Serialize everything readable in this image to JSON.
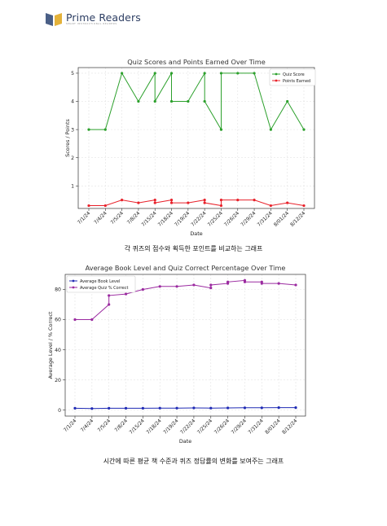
{
  "header": {
    "brand": "Prime Readers",
    "tagline": "SMART INSTRUCTIONAL READERS"
  },
  "charts": [
    {
      "caption": "각 퀴즈의 점수와 획득한 포인트를 비교하는 그래프",
      "chart_data": {
        "type": "line",
        "title": "Quiz Scores and Points Earned Over Time",
        "xlabel": "Date",
        "ylabel": "Scores / Points",
        "x_ticks": [
          "7/1/24",
          "7/4/24",
          "7/5/24",
          "7/8/24",
          "7/15/24",
          "7/18/24",
          "7/19/24",
          "7/22/24",
          "7/25/24",
          "7/26/24",
          "7/29/24",
          "7/31/24",
          "8/01/24",
          "8/12/24"
        ],
        "ylim": [
          0.2,
          5.2
        ],
        "y_ticks": [
          1,
          2,
          3,
          4,
          5
        ],
        "grid": true,
        "legend": "top-right",
        "series": [
          {
            "name": "Quiz Score",
            "color": "#2ca02c",
            "points": [
              [
                0,
                3
              ],
              [
                1,
                3
              ],
              [
                2,
                5
              ],
              [
                3,
                4
              ],
              [
                4,
                5
              ],
              [
                4,
                4
              ],
              [
                5,
                5
              ],
              [
                5,
                4
              ],
              [
                6,
                4
              ],
              [
                7,
                5
              ],
              [
                7,
                4
              ],
              [
                8,
                3
              ],
              [
                8,
                5
              ],
              [
                9,
                5
              ],
              [
                10,
                5
              ],
              [
                11,
                3
              ],
              [
                12,
                4
              ],
              [
                13,
                3
              ]
            ]
          },
          {
            "name": "Points Earned",
            "color": "#e8212a",
            "points": [
              [
                0,
                0.3
              ],
              [
                1,
                0.3
              ],
              [
                2,
                0.5
              ],
              [
                3,
                0.4
              ],
              [
                4,
                0.5
              ],
              [
                4,
                0.4
              ],
              [
                5,
                0.5
              ],
              [
                5,
                0.4
              ],
              [
                6,
                0.4
              ],
              [
                7,
                0.5
              ],
              [
                7,
                0.4
              ],
              [
                8,
                0.3
              ],
              [
                8,
                0.5
              ],
              [
                9,
                0.5
              ],
              [
                10,
                0.5
              ],
              [
                11,
                0.3
              ],
              [
                12,
                0.4
              ],
              [
                13,
                0.3
              ]
            ]
          }
        ]
      }
    },
    {
      "caption": "시간에 따른 평균 책 수준과 퀴즈 정답률의 변화를 보여주는 그래프",
      "chart_data": {
        "type": "line",
        "title": "Average Book Level and Quiz Correct Percentage Over Time",
        "xlabel": "Date",
        "ylabel": "Average Level / % Correct",
        "x_ticks": [
          "7/1/24",
          "7/4/24",
          "7/5/24",
          "7/8/24",
          "7/15/24",
          "7/18/24",
          "7/19/24",
          "7/22/24",
          "7/25/24",
          "7/26/24",
          "7/29/24",
          "7/31/24",
          "8/01/24",
          "8/12/24"
        ],
        "ylim": [
          -4,
          90
        ],
        "y_ticks": [
          0,
          20,
          40,
          60,
          80
        ],
        "grid": true,
        "legend": "top-left",
        "series": [
          {
            "name": "Average Book Level",
            "color": "#1f2ab4",
            "points": [
              [
                0,
                1.2
              ],
              [
                1,
                1.0
              ],
              [
                2,
                1.2
              ],
              [
                3,
                1.2
              ],
              [
                4,
                1.2
              ],
              [
                5,
                1.3
              ],
              [
                6,
                1.3
              ],
              [
                7,
                1.4
              ],
              [
                8,
                1.3
              ],
              [
                9,
                1.4
              ],
              [
                10,
                1.5
              ],
              [
                11,
                1.5
              ],
              [
                12,
                1.6
              ],
              [
                13,
                1.6
              ]
            ]
          },
          {
            "name": "Average Quiz % Correct",
            "color": "#9b2aa0",
            "points": [
              [
                0,
                60
              ],
              [
                1,
                60
              ],
              [
                2,
                70
              ],
              [
                2,
                76
              ],
              [
                3,
                77
              ],
              [
                4,
                80
              ],
              [
                5,
                82
              ],
              [
                6,
                82
              ],
              [
                7,
                83
              ],
              [
                8,
                81
              ],
              [
                8,
                83
              ],
              [
                9,
                84
              ],
              [
                9,
                85
              ],
              [
                10,
                86
              ],
              [
                10,
                85
              ],
              [
                11,
                85
              ],
              [
                11,
                84
              ],
              [
                12,
                84
              ],
              [
                13,
                83
              ]
            ]
          }
        ]
      }
    }
  ]
}
